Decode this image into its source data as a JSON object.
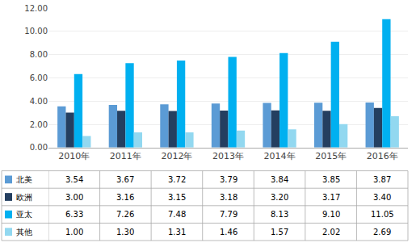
{
  "chart_data": {
    "type": "bar",
    "categories": [
      "2010年",
      "2011年",
      "2012年",
      "2013年",
      "2014年",
      "2015年",
      "2016年"
    ],
    "series": [
      {
        "name": "北美",
        "color": "#5b9bd5",
        "values": [
          3.54,
          3.67,
          3.72,
          3.79,
          3.84,
          3.85,
          3.87
        ],
        "value_labels": [
          "3.54",
          "3.67",
          "3.72",
          "3.79",
          "3.84",
          "3.85",
          "3.87"
        ]
      },
      {
        "name": "欧洲",
        "color": "#243f60",
        "values": [
          3.0,
          3.16,
          3.15,
          3.18,
          3.2,
          3.17,
          3.4
        ],
        "value_labels": [
          "3.00",
          "3.16",
          "3.15",
          "3.18",
          "3.20",
          "3.17",
          "3.40"
        ]
      },
      {
        "name": "亚太",
        "color": "#00b0f0",
        "values": [
          6.33,
          7.26,
          7.48,
          7.79,
          8.13,
          9.1,
          11.05
        ],
        "value_labels": [
          "6.33",
          "7.26",
          "7.48",
          "7.79",
          "8.13",
          "9.10",
          "11.05"
        ]
      },
      {
        "name": "其他",
        "color": "#92d8f0",
        "values": [
          1.0,
          1.3,
          1.31,
          1.46,
          1.57,
          2.02,
          2.69
        ],
        "value_labels": [
          "1.00",
          "1.30",
          "1.31",
          "1.46",
          "1.57",
          "2.02",
          "2.69"
        ]
      }
    ],
    "ylim": [
      0,
      12
    ],
    "yticks": [
      {
        "value": 0,
        "label": "0.00"
      },
      {
        "value": 2,
        "label": "2.00"
      },
      {
        "value": 4,
        "label": "4.00"
      },
      {
        "value": 6,
        "label": "6.00"
      },
      {
        "value": 8,
        "label": "8.00"
      },
      {
        "value": 10,
        "label": "10.00"
      },
      {
        "value": 12,
        "label": "12.00"
      }
    ],
    "grid": true
  }
}
